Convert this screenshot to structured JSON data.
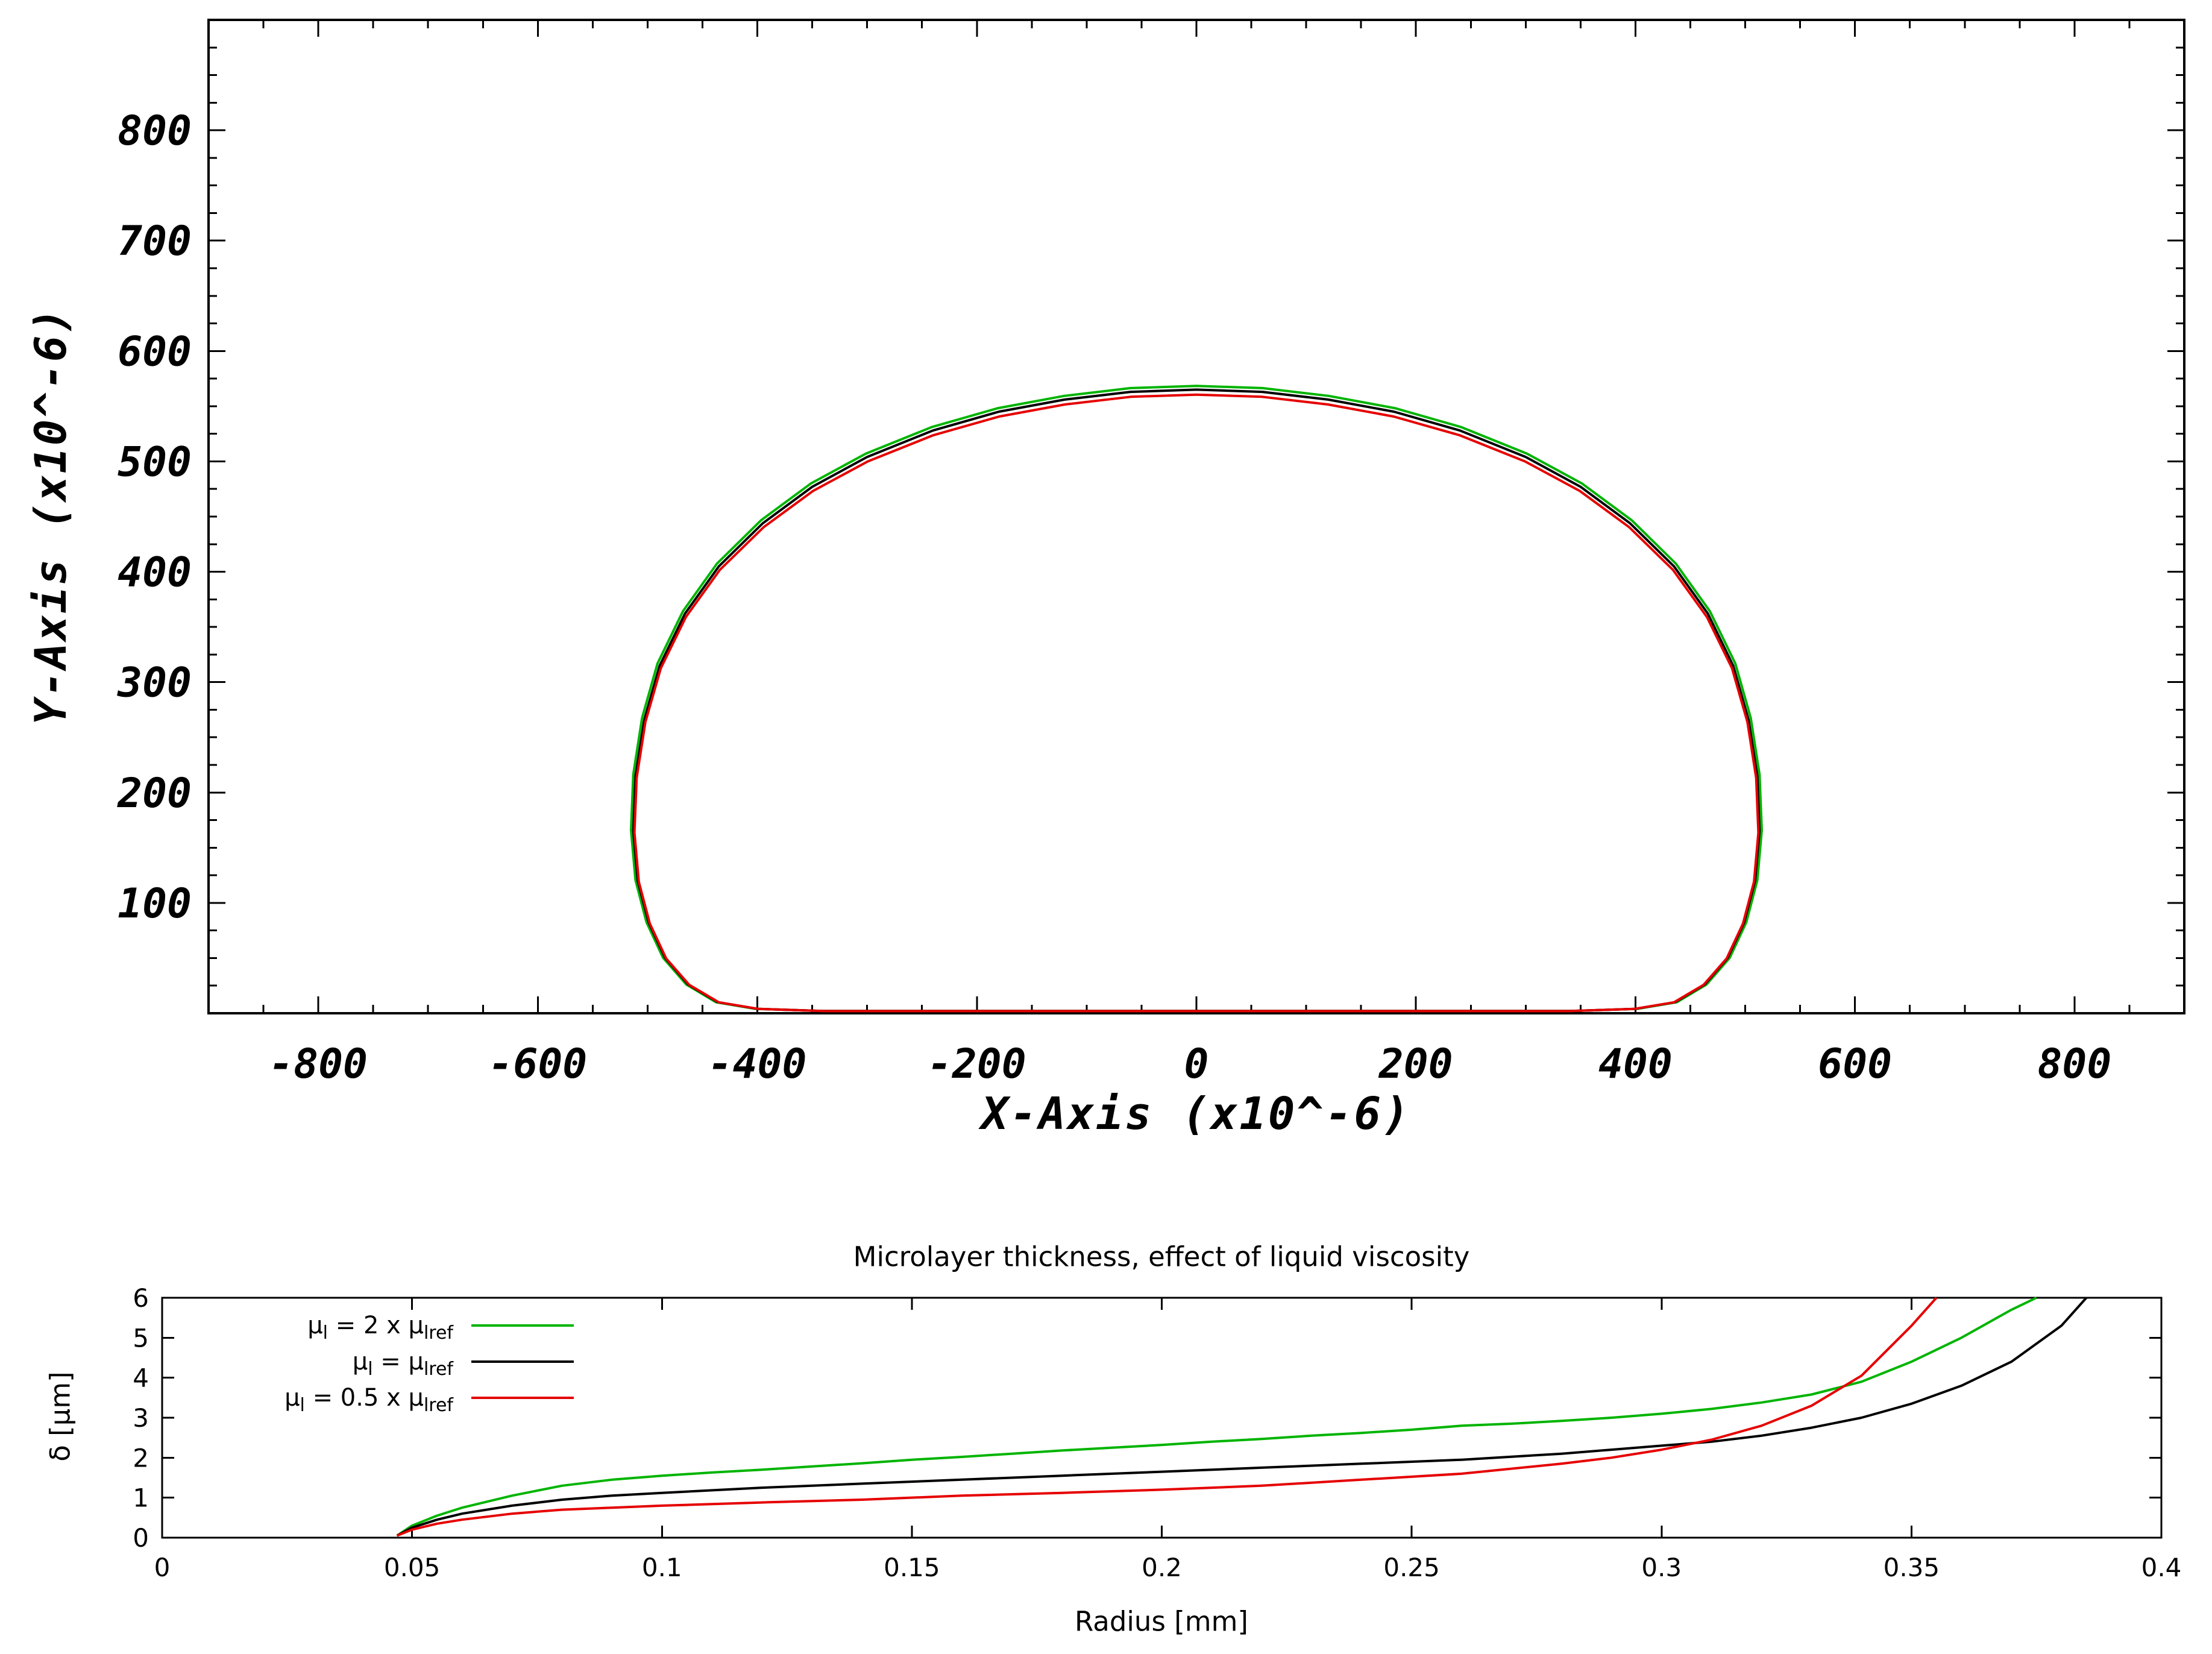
{
  "page": {
    "background": "#ffffff"
  },
  "chart_data": [
    {
      "type": "line",
      "name": "bubble-contour",
      "title": "",
      "xlabel": "X-Axis (x10^-6)",
      "ylabel": "Y-Axis (x10^-6)",
      "xlim": [
        -900,
        900
      ],
      "ylim": [
        0,
        900
      ],
      "x_ticks": [
        -800,
        -600,
        -400,
        -200,
        0,
        200,
        400,
        600,
        800
      ],
      "x_tick_labels": [
        "-800",
        "-600",
        "-400",
        "-200",
        "0",
        "200",
        "400",
        "600",
        "800"
      ],
      "y_ticks": [
        100,
        200,
        300,
        400,
        500,
        600,
        700,
        800
      ],
      "y_tick_labels": [
        "100",
        "200",
        "300",
        "400",
        "500",
        "600",
        "700",
        "800"
      ],
      "x_minor_step": 50,
      "y_minor_step": 25,
      "grid": false,
      "legend": null,
      "series": [
        {
          "name": "mu_l = 2 x mu_lref",
          "color": "#00b400",
          "scale_x": 1.004,
          "scale_y": 1.006
        },
        {
          "name": "mu_l = mu_lref",
          "color": "#000000",
          "scale_x": 1.0,
          "scale_y": 1.0
        },
        {
          "name": "mu_l = 0.5 x mu_lref",
          "color": "#e60000",
          "scale_x": 0.998,
          "scale_y": 0.992
        }
      ],
      "outline": [
        [
          0,
          565
        ],
        [
          60,
          563
        ],
        [
          120,
          556
        ],
        [
          180,
          545
        ],
        [
          240,
          528
        ],
        [
          300,
          504
        ],
        [
          350,
          477
        ],
        [
          395,
          444
        ],
        [
          435,
          405
        ],
        [
          466,
          362
        ],
        [
          489,
          315
        ],
        [
          503,
          266
        ],
        [
          511,
          215
        ],
        [
          513,
          165
        ],
        [
          509,
          120
        ],
        [
          499,
          82
        ],
        [
          484,
          50
        ],
        [
          463,
          26
        ],
        [
          436,
          10
        ],
        [
          400,
          4
        ],
        [
          340,
          2
        ],
        [
          260,
          2
        ],
        [
          160,
          2
        ],
        [
          80,
          2
        ],
        [
          -80,
          2
        ],
        [
          -160,
          2
        ],
        [
          -260,
          2
        ],
        [
          -340,
          2
        ],
        [
          -400,
          4
        ],
        [
          -436,
          10
        ],
        [
          -463,
          26
        ],
        [
          -484,
          50
        ],
        [
          -499,
          82
        ],
        [
          -509,
          120
        ],
        [
          -513,
          165
        ],
        [
          -511,
          215
        ],
        [
          -503,
          266
        ],
        [
          -489,
          315
        ],
        [
          -466,
          362
        ],
        [
          -435,
          405
        ],
        [
          -395,
          444
        ],
        [
          -350,
          477
        ],
        [
          -300,
          504
        ],
        [
          -240,
          528
        ],
        [
          -180,
          545
        ],
        [
          -120,
          556
        ],
        [
          -60,
          563
        ]
      ]
    },
    {
      "type": "line",
      "name": "microlayer-thickness",
      "title": "Microlayer thickness, effect of liquid viscosity",
      "xlabel": "Radius [mm]",
      "ylabel": "δ [μm]",
      "xlim": [
        0,
        0.4
      ],
      "ylim": [
        0,
        6
      ],
      "x_ticks": [
        0,
        0.05,
        0.1,
        0.15,
        0.2,
        0.25,
        0.3,
        0.35,
        0.4
      ],
      "x_tick_labels": [
        "0",
        "0.05",
        "0.1",
        "0.15",
        "0.2",
        "0.25",
        "0.3",
        "0.35",
        "0.4"
      ],
      "y_ticks": [
        0,
        1,
        2,
        3,
        4,
        5,
        6
      ],
      "y_tick_labels": [
        "0",
        "1",
        "2",
        "3",
        "4",
        "5",
        "6"
      ],
      "grid": false,
      "legend": {
        "position": "top-left",
        "items": [
          {
            "color": "#00b400",
            "segments": [
              {
                "text": "μ"
              },
              {
                "text": "l",
                "sub": true
              },
              {
                "text": " = 2 x μ"
              },
              {
                "text": "lref",
                "sub": true
              }
            ]
          },
          {
            "color": "#000000",
            "segments": [
              {
                "text": "μ"
              },
              {
                "text": "l",
                "sub": true
              },
              {
                "text": " = μ"
              },
              {
                "text": "lref",
                "sub": true
              }
            ]
          },
          {
            "color": "#e60000",
            "segments": [
              {
                "text": "μ"
              },
              {
                "text": "l",
                "sub": true
              },
              {
                "text": " = 0.5 x μ"
              },
              {
                "text": "lref",
                "sub": true
              }
            ]
          }
        ]
      },
      "series": [
        {
          "name": "mu_l = 2 x mu_lref",
          "color": "#00b400",
          "points": [
            [
              0.047,
              0.05
            ],
            [
              0.05,
              0.3
            ],
            [
              0.055,
              0.55
            ],
            [
              0.06,
              0.75
            ],
            [
              0.065,
              0.9
            ],
            [
              0.07,
              1.05
            ],
            [
              0.08,
              1.3
            ],
            [
              0.09,
              1.45
            ],
            [
              0.1,
              1.55
            ],
            [
              0.11,
              1.63
            ],
            [
              0.12,
              1.7
            ],
            [
              0.13,
              1.78
            ],
            [
              0.14,
              1.86
            ],
            [
              0.15,
              1.95
            ],
            [
              0.16,
              2.02
            ],
            [
              0.17,
              2.1
            ],
            [
              0.18,
              2.18
            ],
            [
              0.19,
              2.25
            ],
            [
              0.2,
              2.32
            ],
            [
              0.21,
              2.4
            ],
            [
              0.22,
              2.47
            ],
            [
              0.23,
              2.55
            ],
            [
              0.24,
              2.62
            ],
            [
              0.25,
              2.7
            ],
            [
              0.26,
              2.8
            ],
            [
              0.27,
              2.85
            ],
            [
              0.28,
              2.92
            ],
            [
              0.29,
              3.0
            ],
            [
              0.3,
              3.1
            ],
            [
              0.31,
              3.22
            ],
            [
              0.32,
              3.38
            ],
            [
              0.33,
              3.58
            ],
            [
              0.34,
              3.9
            ],
            [
              0.35,
              4.4
            ],
            [
              0.36,
              5.0
            ],
            [
              0.37,
              5.7
            ],
            [
              0.375,
              6.0
            ]
          ]
        },
        {
          "name": "mu_l = mu_lref",
          "color": "#000000",
          "points": [
            [
              0.047,
              0.05
            ],
            [
              0.05,
              0.25
            ],
            [
              0.055,
              0.45
            ],
            [
              0.06,
              0.6
            ],
            [
              0.07,
              0.8
            ],
            [
              0.08,
              0.95
            ],
            [
              0.09,
              1.05
            ],
            [
              0.1,
              1.12
            ],
            [
              0.12,
              1.25
            ],
            [
              0.14,
              1.35
            ],
            [
              0.16,
              1.45
            ],
            [
              0.18,
              1.55
            ],
            [
              0.2,
              1.65
            ],
            [
              0.22,
              1.75
            ],
            [
              0.24,
              1.85
            ],
            [
              0.26,
              1.95
            ],
            [
              0.28,
              2.1
            ],
            [
              0.3,
              2.3
            ],
            [
              0.31,
              2.4
            ],
            [
              0.32,
              2.55
            ],
            [
              0.33,
              2.75
            ],
            [
              0.34,
              3.0
            ],
            [
              0.35,
              3.35
            ],
            [
              0.36,
              3.8
            ],
            [
              0.37,
              4.4
            ],
            [
              0.38,
              5.3
            ],
            [
              0.385,
              6.0
            ]
          ]
        },
        {
          "name": "mu_l = 0.5 x mu_lref",
          "color": "#e60000",
          "points": [
            [
              0.047,
              0.05
            ],
            [
              0.05,
              0.2
            ],
            [
              0.055,
              0.35
            ],
            [
              0.06,
              0.45
            ],
            [
              0.07,
              0.6
            ],
            [
              0.08,
              0.7
            ],
            [
              0.09,
              0.75
            ],
            [
              0.1,
              0.8
            ],
            [
              0.12,
              0.88
            ],
            [
              0.14,
              0.95
            ],
            [
              0.16,
              1.05
            ],
            [
              0.18,
              1.12
            ],
            [
              0.2,
              1.2
            ],
            [
              0.22,
              1.3
            ],
            [
              0.24,
              1.45
            ],
            [
              0.26,
              1.6
            ],
            [
              0.28,
              1.85
            ],
            [
              0.29,
              2.0
            ],
            [
              0.3,
              2.2
            ],
            [
              0.31,
              2.45
            ],
            [
              0.32,
              2.8
            ],
            [
              0.33,
              3.3
            ],
            [
              0.34,
              4.05
            ],
            [
              0.35,
              5.3
            ],
            [
              0.355,
              6.0
            ]
          ]
        }
      ]
    }
  ]
}
